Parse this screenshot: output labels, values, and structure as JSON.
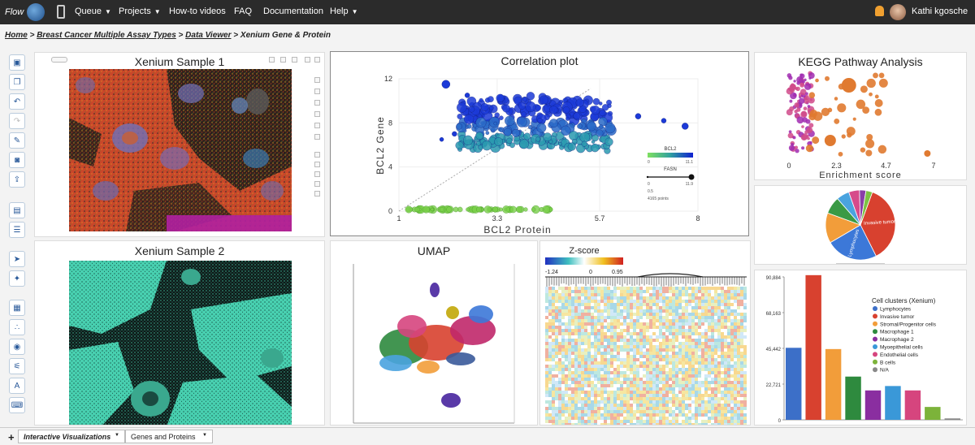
{
  "nav": {
    "logo_text": "Flow",
    "items": [
      {
        "label": "Queue",
        "caret": true
      },
      {
        "label": "Projects",
        "caret": true
      },
      {
        "label": "How-to videos",
        "caret": false
      },
      {
        "label": "FAQ",
        "caret": false
      },
      {
        "label": "Documentation",
        "caret": false
      },
      {
        "label": "Help",
        "caret": true
      }
    ],
    "user": "Kathi kgosche"
  },
  "breadcrumb": {
    "home": "Home",
    "project": "Breast Cancer Multiple Assay Types",
    "viewer": "Data Viewer",
    "current": "Xenium Gene & Protein",
    "sep": ">"
  },
  "toolbar_icons": [
    "save-icon",
    "copy-icon",
    "undo-icon",
    "redo-icon",
    "edit-icon",
    "camera-icon",
    "export-icon",
    "file-icon",
    "database-icon",
    "select-icon",
    "color-icon",
    "table-icon",
    "scatter-icon",
    "eye-icon",
    "filter-icon",
    "text-icon",
    "keyboard-icon"
  ],
  "panels": {
    "sample1": {
      "title": "Xenium Sample 1"
    },
    "sample2": {
      "title": "Xenium Sample 2"
    },
    "correlation": {
      "title": "Correlation plot"
    },
    "kegg": {
      "title": "KEGG Pathway Analysis"
    },
    "umap": {
      "title": "UMAP"
    },
    "heatmap": {
      "title": "Z-score"
    }
  },
  "chart_data": [
    {
      "type": "scatter",
      "title": "Correlation plot",
      "xlabel": "BCL2 Protein",
      "ylabel": "BCL2 Gene",
      "xlim": [
        1,
        8
      ],
      "ylim": [
        0,
        12
      ],
      "xticks": [
        "1",
        "3.3",
        "5.7",
        "8"
      ],
      "yticks": [
        "0",
        "4",
        "8",
        "12"
      ],
      "legend": {
        "color_title": "BCL2",
        "color_min": "0",
        "color_max": "11.1",
        "size_title": "FASN",
        "size_min": "0",
        "size_max": "11.9",
        "size_note": "0.5",
        "points_note": "4165 points"
      }
    },
    {
      "type": "scatter",
      "title": "KEGG Pathway Analysis",
      "xlabel": "Enrichment score",
      "xticks": [
        "0",
        "2.3",
        "4.7",
        "7"
      ],
      "xlim": [
        0,
        7
      ]
    },
    {
      "type": "pie",
      "slices": [
        {
          "label": "Invasive tumor",
          "value": 37,
          "color": "#d8412f"
        },
        {
          "label": "Lymphocytes",
          "value": 24,
          "color": "#3c78d8"
        },
        {
          "label": "",
          "value": 14,
          "color": "#f29d3a"
        },
        {
          "label": "",
          "value": 8,
          "color": "#3a9a45"
        },
        {
          "label": "",
          "value": 6,
          "color": "#4aa3df"
        },
        {
          "label": "",
          "value": 5,
          "color": "#d64a8a"
        },
        {
          "label": "",
          "value": 3,
          "color": "#8a3ea8"
        },
        {
          "label": "",
          "value": 3,
          "color": "#7cc243"
        }
      ]
    },
    {
      "type": "bar",
      "legend_title": "Cell clusters (Xenium)",
      "yticks": [
        "0",
        "22,721",
        "45,442",
        "68,163",
        "90,884"
      ],
      "ylim": [
        0,
        90884
      ],
      "categories": [
        "Lymphocytes",
        "Invasive tumor",
        "Stromal/Progenitor cells",
        "Macrophage 1",
        "Macrophage 2",
        "Myoepithelial cells",
        "Endothelial cells",
        "B cells",
        "N/A"
      ],
      "colors": [
        "#3c6fc8",
        "#d8412f",
        "#f29d3a",
        "#2e8a3e",
        "#8a2ea0",
        "#3a98d8",
        "#d6457e",
        "#7cb33a",
        "#888888"
      ],
      "values": [
        45800,
        92000,
        45000,
        27500,
        18700,
        21500,
        18700,
        8200,
        900
      ]
    },
    {
      "type": "heatmap",
      "title": "Z-score",
      "scale_min": "-1.24",
      "scale_mid": "0",
      "scale_max": "0.95"
    }
  ],
  "bottom_tabs": [
    {
      "label": "Interactive Visualizations"
    },
    {
      "label": "Genes and Proteins"
    }
  ]
}
